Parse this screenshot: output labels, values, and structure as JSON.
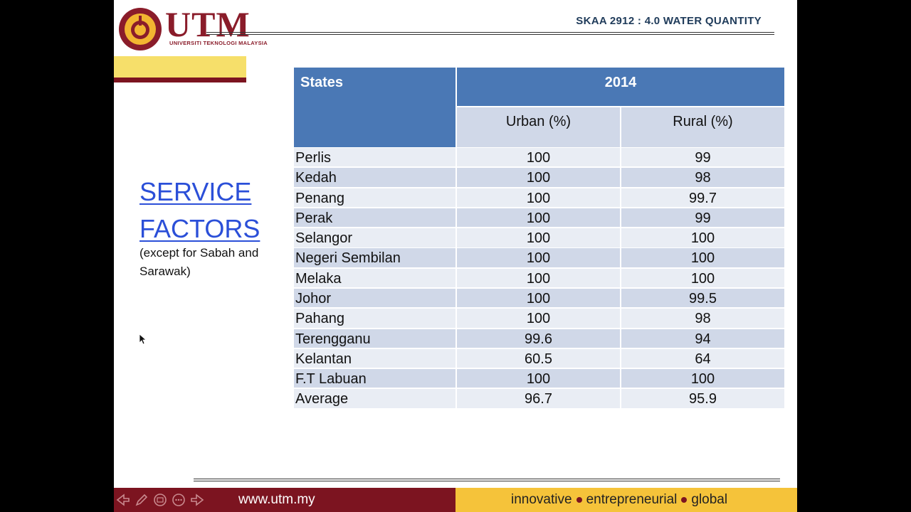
{
  "header": {
    "logo_text": "UTM",
    "logo_subtitle": "UNIVERSITI TEKNOLOGI MALAYSIA",
    "course_title": "SKAA 2912 : 4.0 WATER QUANTITY"
  },
  "heading": {
    "line1": "SERVICE",
    "line2": "FACTORS"
  },
  "note": "(except for Sabah and Sarawak)",
  "table": {
    "col_states": "States",
    "col_year": "2014",
    "col_urban": "Urban (%)",
    "col_rural": "Rural (%)",
    "rows": [
      {
        "state": "Perlis",
        "urban": "100",
        "rural": "99"
      },
      {
        "state": "Kedah",
        "urban": "100",
        "rural": "98"
      },
      {
        "state": "Penang",
        "urban": "100",
        "rural": "99.7"
      },
      {
        "state": "Perak",
        "urban": "100",
        "rural": "99"
      },
      {
        "state": "Selangor",
        "urban": "100",
        "rural": "100"
      },
      {
        "state": "Negeri Sembilan",
        "urban": "100",
        "rural": "100"
      },
      {
        "state": "Melaka",
        "urban": "100",
        "rural": "100"
      },
      {
        "state": "Johor",
        "urban": "100",
        "rural": "99.5"
      },
      {
        "state": "Pahang",
        "urban": "100",
        "rural": "98"
      },
      {
        "state": "Terengganu",
        "urban": "99.6",
        "rural": "94"
      },
      {
        "state": "Kelantan",
        "urban": "60.5",
        "rural": "64"
      },
      {
        "state": "F.T Labuan",
        "urban": "100",
        "rural": "100"
      },
      {
        "state": "Average",
        "urban": "96.7",
        "rural": "95.9"
      }
    ]
  },
  "footer": {
    "url": "www.utm.my",
    "tag1": "innovative",
    "tag2": "entrepreneurial",
    "tag3": "global",
    "nav_icons": [
      "arrow-left-icon",
      "pen-icon",
      "slides-icon",
      "more-icon",
      "arrow-right-icon"
    ]
  },
  "colors": {
    "header_blue": "#4a78b5",
    "row_light": "#e9edf4",
    "row_dark": "#d0d8e8",
    "maroon": "#7c1420",
    "gold": "#f5c33a",
    "link_blue": "#2b4fd8"
  }
}
